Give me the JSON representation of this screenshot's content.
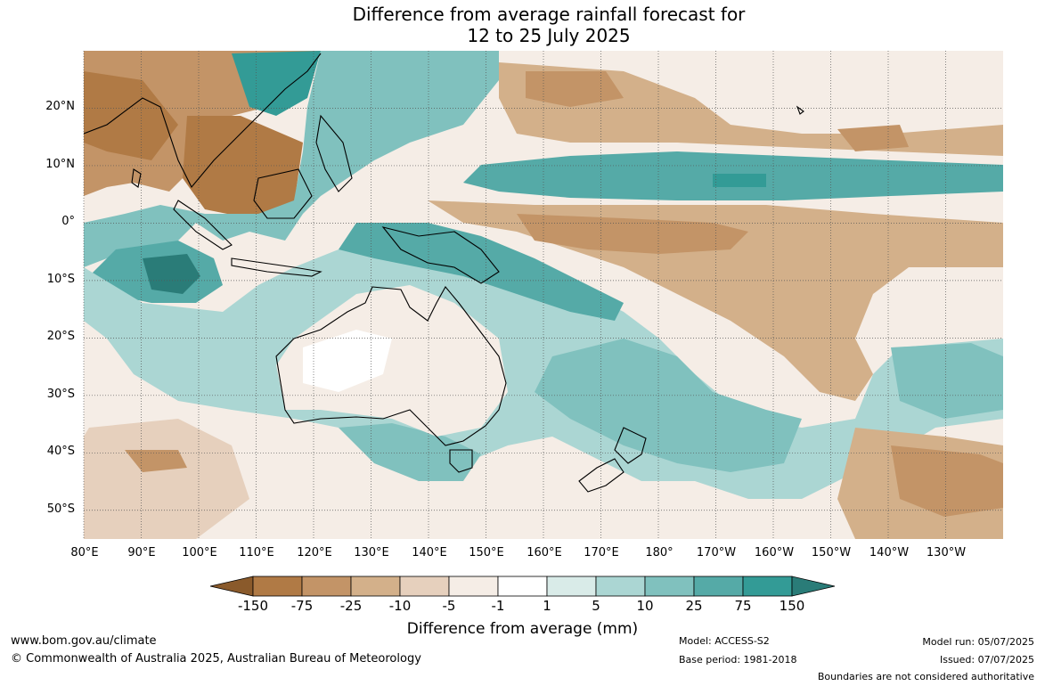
{
  "title": {
    "line1": "Difference from average rainfall forecast for",
    "line2": "12 to 25 July 2025"
  },
  "map": {
    "lat_labels": [
      "20°N",
      "10°N",
      "0°",
      "10°S",
      "20°S",
      "30°S",
      "40°S",
      "50°S"
    ],
    "lon_labels": [
      "80°E",
      "90°E",
      "100°E",
      "110°E",
      "120°E",
      "130°E",
      "140°E",
      "150°E",
      "160°E",
      "170°E",
      "180°",
      "170°W",
      "160°W",
      "150°W",
      "140°W",
      "130°W"
    ],
    "lat_values": [
      20,
      10,
      0,
      -10,
      -20,
      -30,
      -40,
      -50
    ],
    "lon_values": [
      80,
      90,
      100,
      110,
      120,
      130,
      140,
      150,
      160,
      170,
      180,
      190,
      200,
      210,
      220,
      230
    ],
    "extent": {
      "lon_min": 80,
      "lon_max": 240,
      "lat_min": -55,
      "lat_max": 30
    }
  },
  "colorbar": {
    "ticks": [
      "-150",
      "-75",
      "-25",
      "-10",
      "-5",
      "-1",
      "1",
      "5",
      "10",
      "25",
      "75",
      "150"
    ],
    "colors": [
      "#8a5a2b",
      "#b07a45",
      "#c39467",
      "#d3b08a",
      "#e6d0bd",
      "#f5ede6",
      "#ffffff",
      "#d9ebe8",
      "#abd6d3",
      "#80c1be",
      "#55aaa7",
      "#339b96",
      "#2a7c78"
    ],
    "label": "Difference from average (mm)"
  },
  "footer": {
    "website": "www.bom.gov.au/climate",
    "copyright": "© Commonwealth of Australia 2025, Australian Bureau of Meteorology",
    "model": "Model: ACCESS-S2",
    "base_period": "Base period: 1981-2018",
    "model_run": "Model run: 05/07/2025",
    "issued": "Issued: 07/07/2025",
    "disclaimer": "Boundaries are not considered authoritative"
  }
}
